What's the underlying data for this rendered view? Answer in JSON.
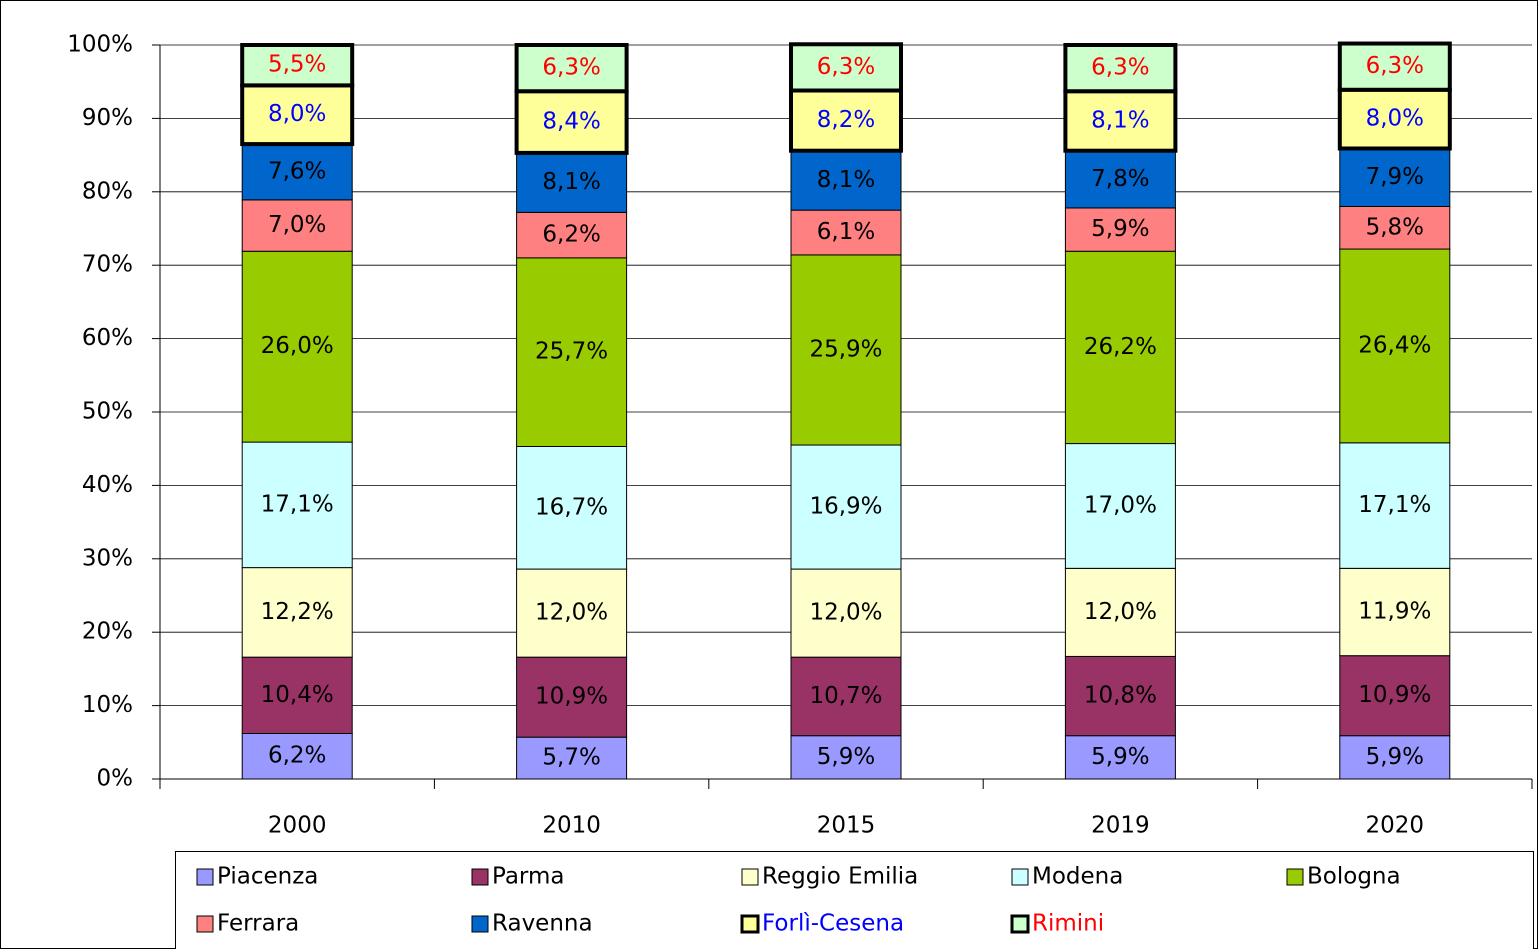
{
  "chart_data": {
    "type": "stacked_bar",
    "categories": [
      "2000",
      "2010",
      "2015",
      "2019",
      "2020"
    ],
    "series": [
      {
        "name": "Piacenza",
        "color": "#9999ff",
        "label_color": "#000000",
        "values": [
          6.2,
          5.7,
          5.9,
          5.9,
          5.9
        ],
        "value_labels": [
          "6,2%",
          "5,7%",
          "5,9%",
          "5,9%",
          "5,9%"
        ]
      },
      {
        "name": "Parma",
        "color": "#993366",
        "label_color": "#000000",
        "values": [
          10.4,
          10.9,
          10.7,
          10.8,
          10.9
        ],
        "value_labels": [
          "10,4%",
          "10,9%",
          "10,7%",
          "10,8%",
          "10,9%"
        ]
      },
      {
        "name": "Reggio Emilia",
        "color": "#ffffcc",
        "label_color": "#000000",
        "values": [
          12.2,
          12.0,
          12.0,
          12.0,
          11.9
        ],
        "value_labels": [
          "12,2%",
          "12,0%",
          "12,0%",
          "12,0%",
          "11,9%"
        ]
      },
      {
        "name": "Modena",
        "color": "#ccffff",
        "label_color": "#000000",
        "values": [
          17.1,
          16.7,
          16.9,
          17.0,
          17.1
        ],
        "value_labels": [
          "17,1%",
          "16,7%",
          "16,9%",
          "17,0%",
          "17,1%"
        ]
      },
      {
        "name": "Bologna",
        "color": "#99cc00",
        "label_color": "#000000",
        "values": [
          26.0,
          25.7,
          25.9,
          26.2,
          26.4
        ],
        "value_labels": [
          "26,0%",
          "25,7%",
          "25,9%",
          "26,2%",
          "26,4%"
        ]
      },
      {
        "name": "Ferrara",
        "color": "#ff8080",
        "label_color": "#000000",
        "values": [
          7.0,
          6.2,
          6.1,
          5.9,
          5.8
        ],
        "value_labels": [
          "7,0%",
          "6,2%",
          "6,1%",
          "5,9%",
          "5,8%"
        ]
      },
      {
        "name": "Ravenna",
        "color": "#0066cc",
        "label_color": "#000000",
        "values": [
          7.6,
          8.1,
          8.1,
          7.8,
          7.9
        ],
        "value_labels": [
          "7,6%",
          "8,1%",
          "8,1%",
          "7,8%",
          "7,9%"
        ]
      },
      {
        "name": "Forlì-Cesena",
        "color": "#ffff99",
        "label_color": "#0000ff",
        "emphasis": true,
        "values": [
          8.0,
          8.4,
          8.2,
          8.1,
          8.0
        ],
        "value_labels": [
          "8,0%",
          "8,4%",
          "8,2%",
          "8,1%",
          "8,0%"
        ]
      },
      {
        "name": "Rimini",
        "color": "#ccffcc",
        "label_color": "#ff0000",
        "emphasis": true,
        "values": [
          5.5,
          6.3,
          6.3,
          6.3,
          6.3
        ],
        "value_labels": [
          "5,5%",
          "6,3%",
          "6,3%",
          "6,3%",
          "6,3%"
        ]
      }
    ],
    "ylim": [
      0,
      100
    ],
    "yticks": [
      {
        "value": 0,
        "label": "0%"
      },
      {
        "value": 10,
        "label": "10%"
      },
      {
        "value": 20,
        "label": "20%"
      },
      {
        "value": 30,
        "label": "30%"
      },
      {
        "value": 40,
        "label": "40%"
      },
      {
        "value": 50,
        "label": "50%"
      },
      {
        "value": 60,
        "label": "60%"
      },
      {
        "value": 70,
        "label": "70%"
      },
      {
        "value": 80,
        "label": "80%"
      },
      {
        "value": 90,
        "label": "90%"
      },
      {
        "value": 100,
        "label": "100%"
      }
    ],
    "grid": true,
    "legend": "bottom"
  }
}
